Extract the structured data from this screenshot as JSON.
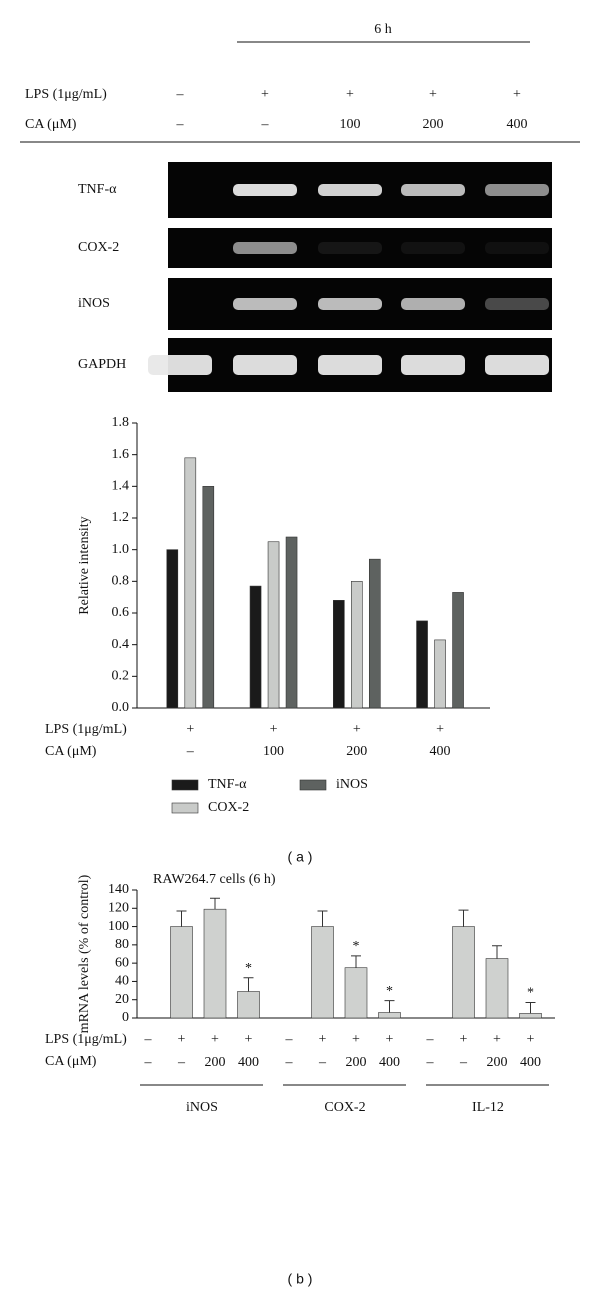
{
  "gel": {
    "time_label": "6 h",
    "row_labels": [
      "LPS (1μg/mL)",
      "CA (μM)"
    ],
    "rows": [
      [
        "–",
        "+",
        "+",
        "+",
        "+"
      ],
      [
        "–",
        "–",
        "100",
        "200",
        "400"
      ]
    ],
    "bands": [
      "TNF-α",
      "COX-2",
      "iNOS",
      "GAPDH"
    ]
  },
  "panel_labels": [
    "( a )",
    "( b )"
  ],
  "chart_data": [
    {
      "type": "bar",
      "y_label": "Relative intensity",
      "categories": [
        "–",
        "100",
        "200",
        "400"
      ],
      "row_labels": [
        "LPS (1μg/mL)",
        "CA (μM)"
      ],
      "lps_row": [
        "+",
        "+",
        "+",
        "+"
      ],
      "series": [
        {
          "name": "TNF-α",
          "color": "#1a1a1a",
          "values": [
            1.0,
            0.77,
            0.68,
            0.55
          ]
        },
        {
          "name": "COX-2",
          "color": "#c9cbc9",
          "values": [
            1.58,
            1.05,
            0.8,
            0.43
          ]
        },
        {
          "name": "iNOS",
          "color": "#5e6260",
          "values": [
            1.4,
            1.08,
            0.94,
            0.73
          ]
        }
      ],
      "ylim": [
        0,
        1.8
      ],
      "yticks": [
        {
          "value": 0,
          "label": "0.0"
        },
        0.2,
        0.4,
        0.6,
        0.8,
        {
          "value": 1,
          "label": "1.0"
        },
        1.2,
        1.4,
        1.6,
        1.8
      ],
      "grid": false
    },
    {
      "type": "errorbar",
      "title": "RAW264.7 cells (6 h)",
      "y_label": "mRNA levels (% of control)",
      "row_labels": [
        "LPS (1μg/mL)",
        "CA (μM)"
      ],
      "lps_row": [
        "–",
        "+",
        "+",
        "+",
        "–",
        "+",
        "+",
        "+",
        "–",
        "+",
        "+",
        "+"
      ],
      "categories": [
        "–",
        "–",
        "200",
        "400",
        "–",
        "–",
        "200",
        "400",
        "–",
        "–",
        "200",
        "400"
      ],
      "groups": [
        "iNOS",
        "COX-2",
        "IL-12"
      ],
      "color": "#cfd1cf",
      "values": [
        null,
        100,
        119,
        29,
        null,
        100,
        55,
        6,
        null,
        100,
        65,
        5
      ],
      "errors": [
        null,
        17,
        12,
        15,
        null,
        17,
        13,
        13,
        null,
        18,
        14,
        12
      ],
      "annotations": [
        null,
        null,
        null,
        "*",
        null,
        null,
        "*",
        "*",
        null,
        null,
        null,
        "*"
      ],
      "ylim": [
        0,
        140
      ],
      "yticks": [
        0,
        20,
        40,
        60,
        80,
        100,
        120,
        140
      ],
      "grid": false
    }
  ]
}
